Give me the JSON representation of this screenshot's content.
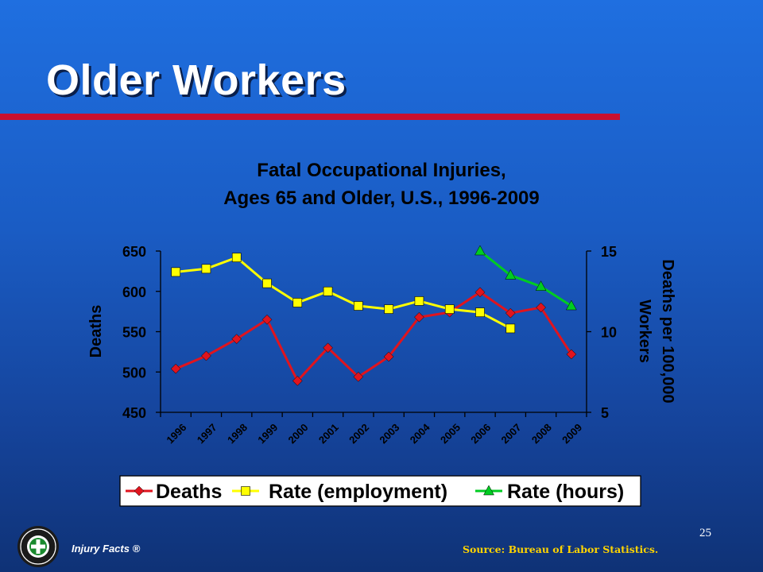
{
  "slide": {
    "title": "Older Workers",
    "page_number": "25",
    "source": "Source: Bureau of Labor Statistics.",
    "brand": "Injury Facts ®",
    "logo_icon": "national-safety-council-seal-icon",
    "title_rule_color": "#c8102e"
  },
  "chart_data": {
    "type": "line",
    "title": [
      "Fatal Occupational Injuries,",
      "Ages 65 and Older, U.S., 1996-2009"
    ],
    "ylabel": "Deaths",
    "y2label": [
      "Deaths per 100,000",
      "Workers"
    ],
    "categories": [
      "1996",
      "1997",
      "1998",
      "1999",
      "2000",
      "2001",
      "2002",
      "2003",
      "2004",
      "2005",
      "2006",
      "2007",
      "2008",
      "2009"
    ],
    "ylim": [
      450,
      650
    ],
    "yticks": [
      450,
      500,
      550,
      600,
      650
    ],
    "y2lim": [
      5,
      15
    ],
    "y2ticks": [
      5,
      10,
      15
    ],
    "legend_position": "bottom",
    "series": [
      {
        "name": "Deaths",
        "axis": "left",
        "color": "#e0141e",
        "marker": "diamond",
        "values": [
          504,
          520,
          541,
          565,
          489,
          530,
          494,
          519,
          568,
          574,
          599,
          573,
          580,
          522
        ]
      },
      {
        "name": "Rate (employment)",
        "axis": "right",
        "color": "#ffff00",
        "marker": "square",
        "values": [
          13.7,
          13.9,
          14.6,
          13.0,
          11.8,
          12.5,
          11.6,
          11.4,
          11.9,
          11.4,
          11.2,
          10.2,
          null,
          null
        ]
      },
      {
        "name": "Rate (hours)",
        "axis": "right",
        "color": "#00cc22",
        "marker": "triangle",
        "values": [
          null,
          null,
          null,
          null,
          null,
          null,
          null,
          null,
          null,
          null,
          15.0,
          13.5,
          12.8,
          11.6
        ]
      }
    ]
  }
}
